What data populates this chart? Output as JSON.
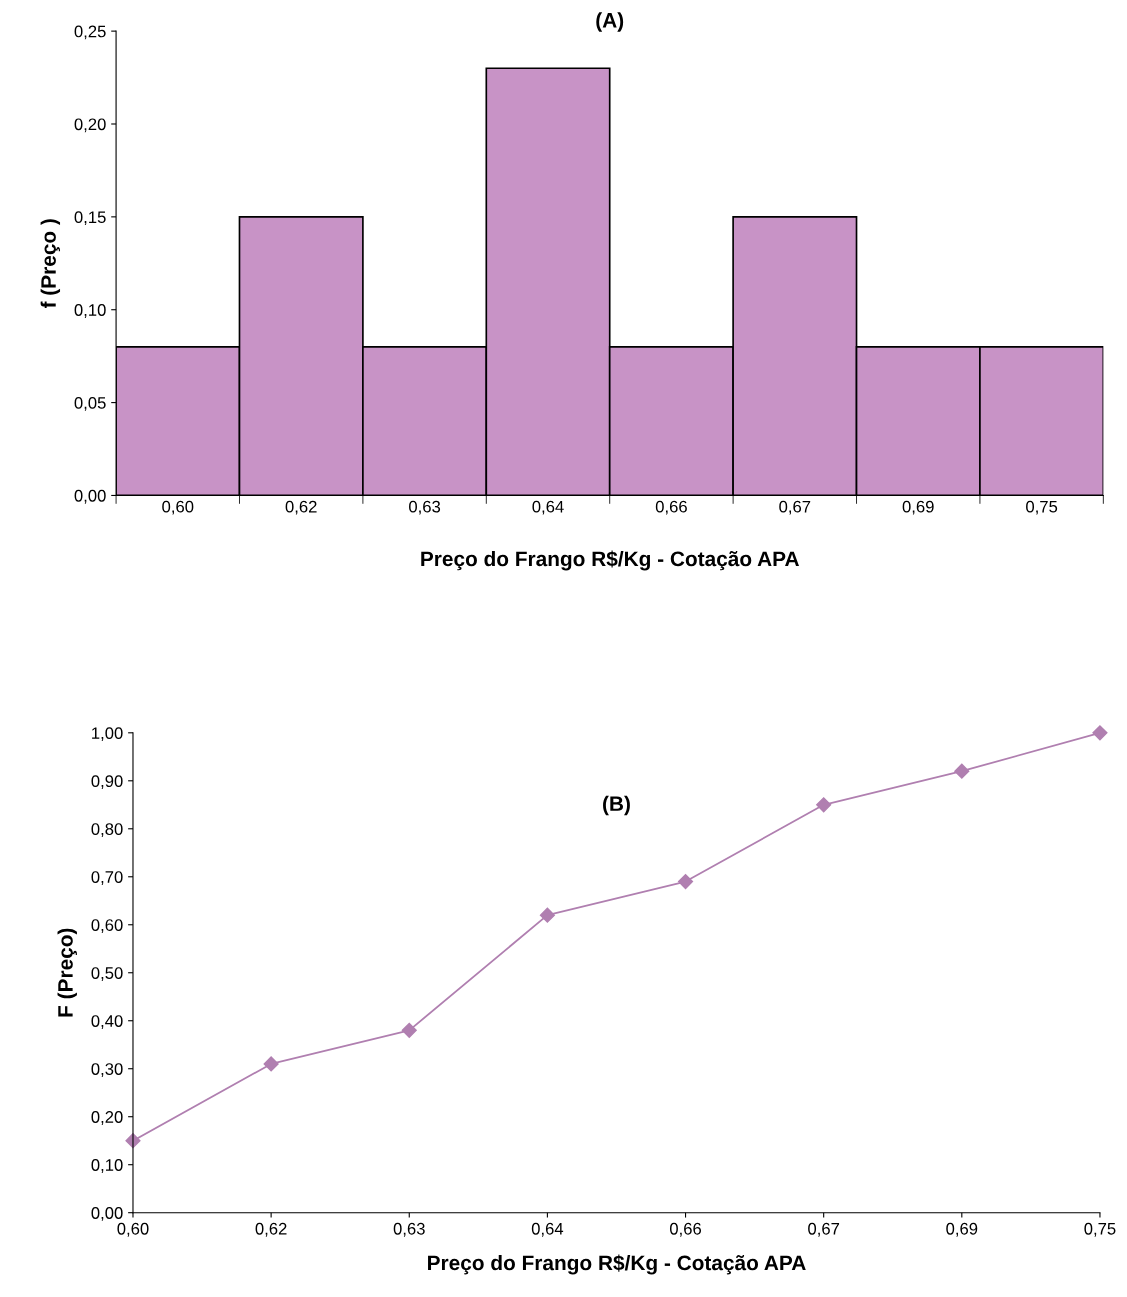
{
  "chart_data": [
    {
      "type": "bar",
      "title": "(A)",
      "xlabel": "Preço do Frango R$/Kg - Cotação APA",
      "ylabel": "f (Preço )",
      "categories": [
        "0,60",
        "0,62",
        "0,63",
        "0,64",
        "0,66",
        "0,67",
        "0,69",
        "0,75"
      ],
      "series": [
        {
          "color": "#c893c6",
          "values": [
            0.08,
            0.15,
            0.08,
            0.23,
            0.08,
            0.15,
            0.08,
            0.08
          ]
        }
      ],
      "ylim": [
        0,
        0.25
      ],
      "yticks": [
        {
          "value": 0,
          "label": "0,00"
        },
        {
          "value": 0.05,
          "label": "0,05"
        },
        {
          "value": 0.1,
          "label": "0,10"
        },
        {
          "value": 0.15,
          "label": "0,15"
        },
        {
          "value": 0.2,
          "label": "0,20"
        },
        {
          "value": 0.25,
          "label": "0,25"
        }
      ],
      "grid": false
    },
    {
      "type": "line",
      "title": "(B)",
      "xlabel": "Preço do Frango R$/Kg - Cotação APA",
      "ylabel": "F (Preço)",
      "categories": [
        "0,60",
        "0,62",
        "0,63",
        "0,64",
        "0,66",
        "0,67",
        "0,69",
        "0,75"
      ],
      "series": [
        {
          "color": "#b07fb0",
          "values": [
            0.15,
            0.31,
            0.38,
            0.62,
            0.69,
            0.85,
            0.92,
            1.0
          ]
        }
      ],
      "marker": "diamond",
      "line_style": "solid",
      "ylim": [
        0,
        1.0
      ],
      "yticks": [
        {
          "value": 0,
          "label": "0,00"
        },
        {
          "value": 0.1,
          "label": "0,10"
        },
        {
          "value": 0.2,
          "label": "0,20"
        },
        {
          "value": 0.3,
          "label": "0,30"
        },
        {
          "value": 0.4,
          "label": "0,40"
        },
        {
          "value": 0.5,
          "label": "0,50"
        },
        {
          "value": 0.6,
          "label": "0,60"
        },
        {
          "value": 0.7,
          "label": "0,70"
        },
        {
          "value": 0.8,
          "label": "0,80"
        },
        {
          "value": 0.9,
          "label": "0,90"
        },
        {
          "value": 1.0,
          "label": "1,00"
        }
      ],
      "grid": false
    }
  ]
}
